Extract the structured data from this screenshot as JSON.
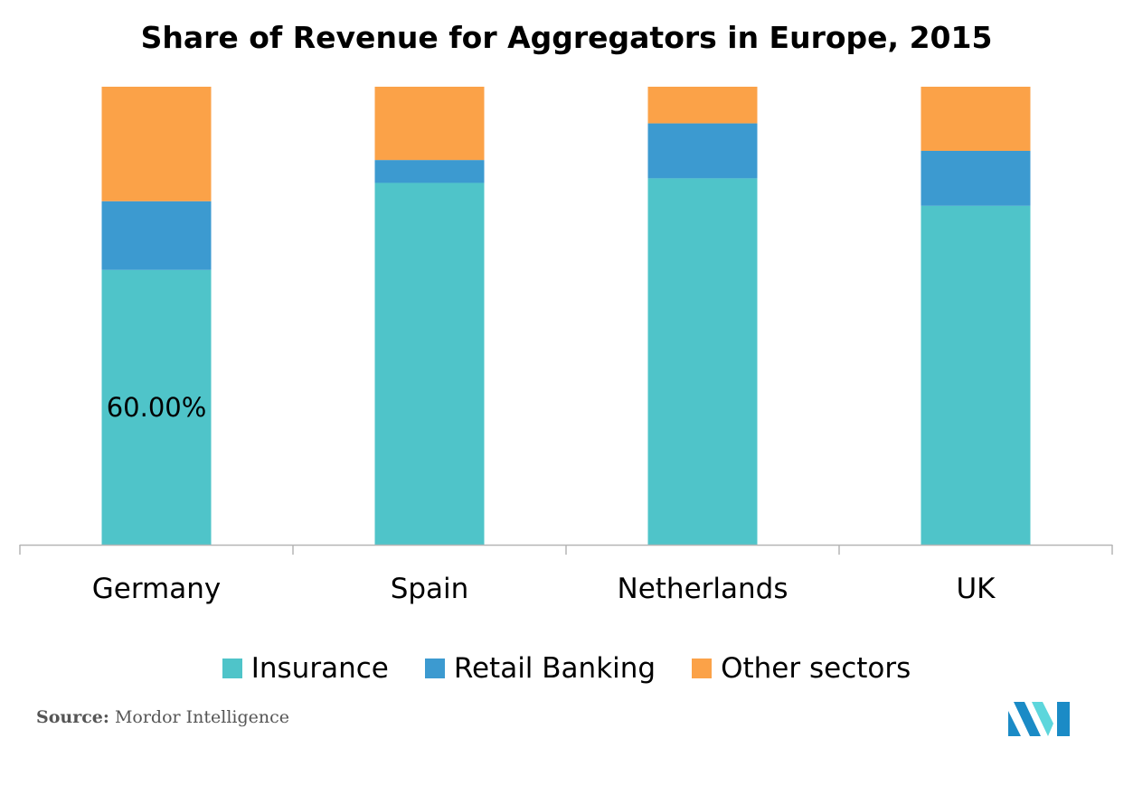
{
  "chart_data": {
    "type": "bar",
    "stacked": true,
    "normalized": true,
    "title": "Share of Revenue for Aggregators in Europe, 2015",
    "categories": [
      "Germany",
      "Spain",
      "Netherlands",
      "UK"
    ],
    "series": [
      {
        "name": "Insurance",
        "values": [
          60,
          79,
          80,
          74
        ],
        "color": "#4fc4c9"
      },
      {
        "name": "Retail Banking",
        "values": [
          15,
          5,
          12,
          12
        ],
        "color": "#3c9ad0"
      },
      {
        "name": "Other sectors",
        "values": [
          25,
          16,
          8,
          14
        ],
        "color": "#fba248"
      }
    ],
    "data_labels": [
      {
        "category": "Germany",
        "series": "Insurance",
        "text": "60.00%"
      }
    ],
    "ylim": [
      0,
      100
    ],
    "grid": false,
    "legend": "bottom"
  },
  "source": {
    "prefix": "Source:",
    "text": "Mordor Intelligence"
  },
  "logo": {
    "icon": "mordor-intelligence-logo",
    "colors": [
      "#1b8bc6",
      "#5dd6dc"
    ]
  }
}
